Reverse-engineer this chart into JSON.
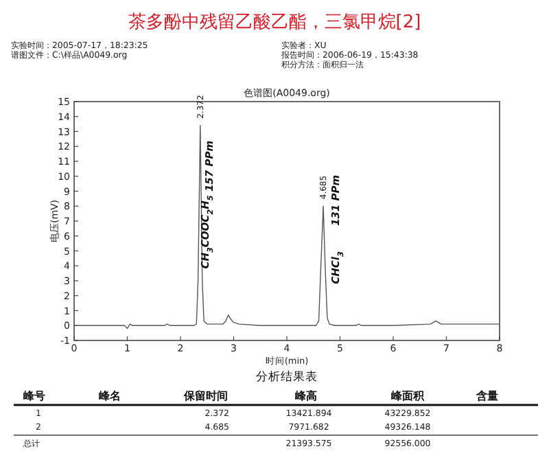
{
  "chart_data": {
    "type": "line",
    "title": "茶多酚中残留乙酸乙酯，三氯甲烷[2]",
    "subtitle": "色谱图(A0049.org)",
    "xlabel": "时间(min)",
    "ylabel": "电压(mV)",
    "xlim": [
      0,
      8
    ],
    "ylim": [
      -1,
      15
    ],
    "xticks": [
      0,
      1,
      2,
      3,
      4,
      5,
      6,
      7,
      8
    ],
    "yticks": [
      -1,
      0,
      1,
      2,
      3,
      4,
      5,
      6,
      7,
      8,
      9,
      10,
      11,
      12,
      13,
      14,
      15
    ],
    "grid": false,
    "marker": "none",
    "line_style": "solid",
    "series": [
      {
        "color": "#555555",
        "x": [
          0,
          0.5,
          0.95,
          1.0,
          1.05,
          1.1,
          1.7,
          1.75,
          1.8,
          2.2,
          2.25,
          2.3,
          2.33,
          2.372,
          2.41,
          2.44,
          2.5,
          2.6,
          2.8,
          2.85,
          2.9,
          2.95,
          3.0,
          3.1,
          3.5,
          4.55,
          4.6,
          4.64,
          4.685,
          4.72,
          4.76,
          4.8,
          4.9,
          5.3,
          5.35,
          5.4,
          6.0,
          6.7,
          6.8,
          6.9,
          7.2,
          8
        ],
        "values": [
          0,
          0,
          0,
          -0.2,
          0.1,
          0,
          0,
          0.1,
          0,
          0,
          0,
          0.1,
          3,
          13.4,
          3,
          0.3,
          0.1,
          0.1,
          0.1,
          0.3,
          0.7,
          0.4,
          0.2,
          0.1,
          0,
          0,
          0.3,
          4,
          8.0,
          4,
          0.5,
          0.1,
          0,
          0,
          0.1,
          0,
          0,
          0.1,
          0.3,
          0.1,
          0.1,
          0.1
        ]
      }
    ],
    "annotations": [
      "实验时间：2005-07-17，18:23:25",
      "谱图文件：C:\\样品\\A0049.org",
      "实验者：XU",
      "报告时间：2006-06-19，15:43:38",
      "积分方法：面积归一法",
      {
        "text": "2.372",
        "x": 2.372,
        "y": 13.4
      },
      {
        "text": "4.685",
        "x": 4.685,
        "y": 8.0
      },
      "CH$_{3}$COOC$_{2}$H$_{5}$",
      "157 PPm",
      "CHCl$_{3}$",
      "131 PPm",
      "分析结果表",
      "峰号",
      "峰名",
      "保留时间",
      "峰高",
      "峰面积",
      "含量",
      "1",
      "2.372",
      "13421.894",
      "43229.852",
      "2",
      "4.685",
      "7971.682",
      "49326.148",
      "总计",
      "21393.575",
      "92556.000"
    ]
  }
}
